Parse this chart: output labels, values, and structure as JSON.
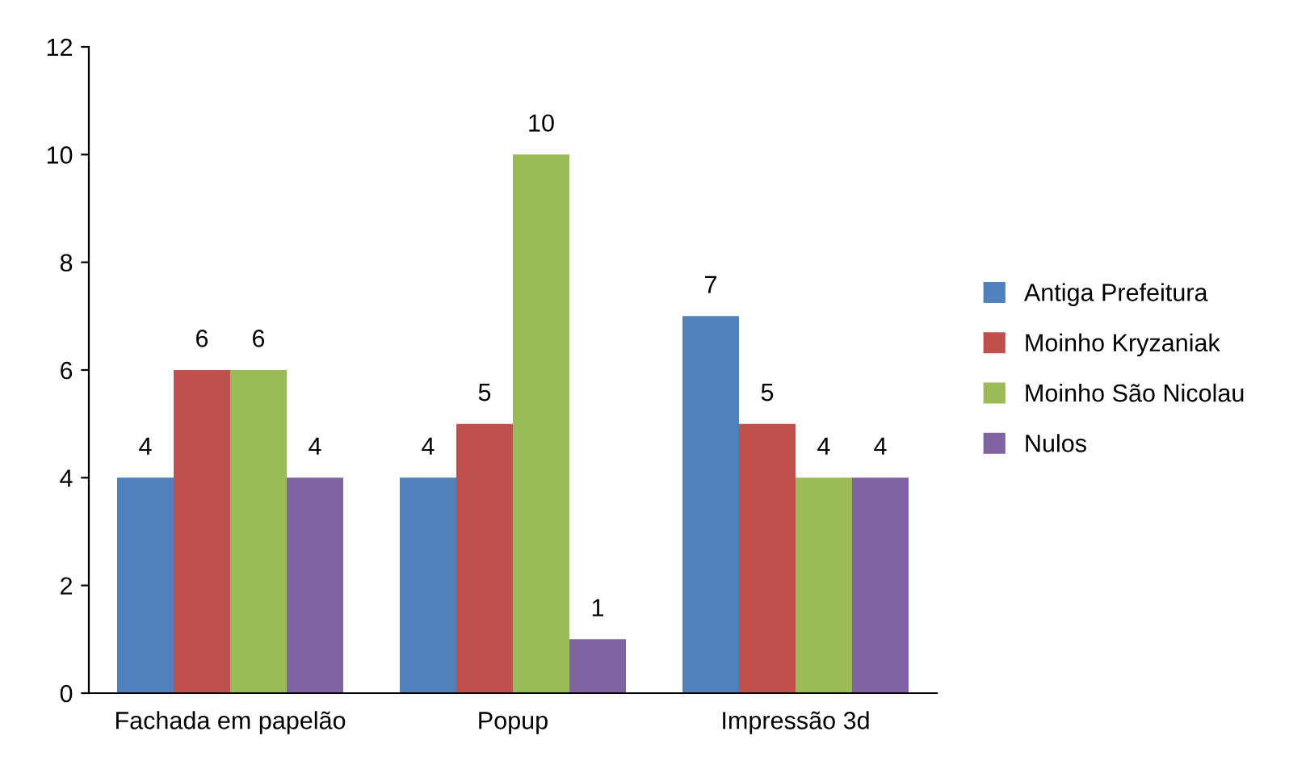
{
  "chart_data": {
    "type": "bar",
    "categories": [
      "Fachada em papelão",
      "Popup",
      "Impressão 3d"
    ],
    "series": [
      {
        "name": "Antiga Prefeitura",
        "color": "#4f81bd",
        "values": [
          4,
          4,
          7
        ]
      },
      {
        "name": "Moinho Kryzaniak",
        "color": "#c0504d",
        "values": [
          6,
          5,
          5
        ]
      },
      {
        "name": "Moinho São Nicolau",
        "color": "#9bbb59",
        "values": [
          6,
          10,
          4
        ]
      },
      {
        "name": "Nulos",
        "color": "#8064a2",
        "values": [
          4,
          1,
          4
        ]
      }
    ],
    "ylim": [
      0,
      12
    ],
    "yticks": [
      0,
      2,
      4,
      6,
      8,
      10,
      12
    ],
    "data_labels": true,
    "legend": "right",
    "grid": false
  }
}
